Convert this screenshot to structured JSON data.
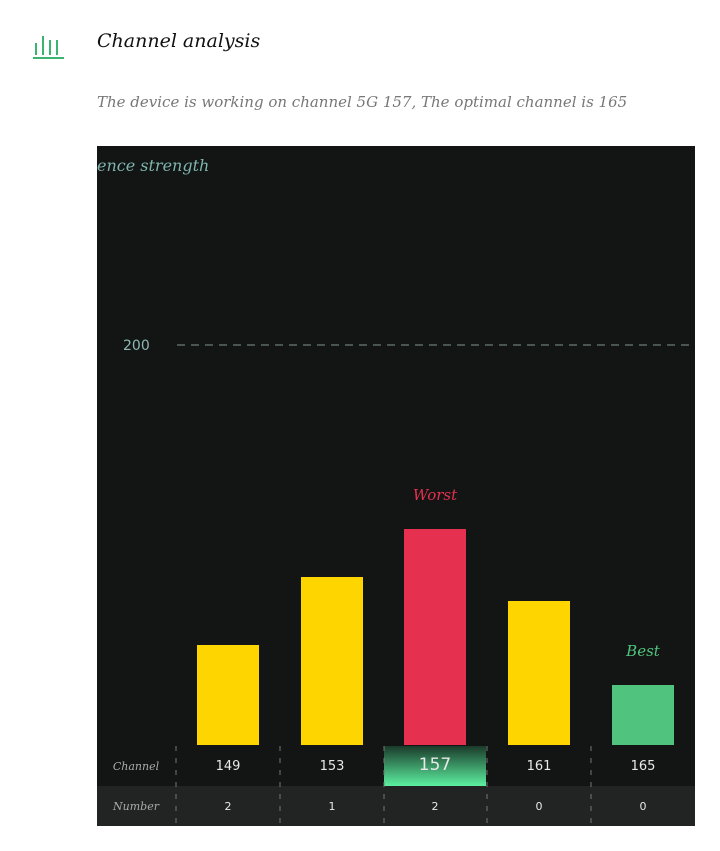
{
  "header": {
    "title": "Channel analysis",
    "icon": "bar-chart-icon",
    "icon_color": "#3cb371"
  },
  "summary": "The device is working on channel 5G 157, The optimal channel is 165",
  "chart_data": {
    "type": "bar",
    "ylabel": "ence strength",
    "y_ticks": [
      200
    ],
    "ylim": [
      0,
      200
    ],
    "grid": "dashed line at 200",
    "categories": [
      "149",
      "153",
      "157",
      "161",
      "165"
    ],
    "values": [
      50,
      84,
      108,
      72,
      30
    ],
    "colors": [
      "#ffd500",
      "#ffd500",
      "#e5304f",
      "#ffd500",
      "#50c47f"
    ],
    "annotations": [
      {
        "category": "157",
        "text": "Worst",
        "color": "#e5304f"
      },
      {
        "category": "165",
        "text": "Best",
        "color": "#50c47f"
      }
    ],
    "selected": "157",
    "table": {
      "row_labels": [
        "Channel",
        "Number"
      ],
      "channels": [
        "149",
        "153",
        "157",
        "161",
        "165"
      ],
      "numbers": [
        "2",
        "1",
        "2",
        "0",
        "0"
      ]
    }
  }
}
